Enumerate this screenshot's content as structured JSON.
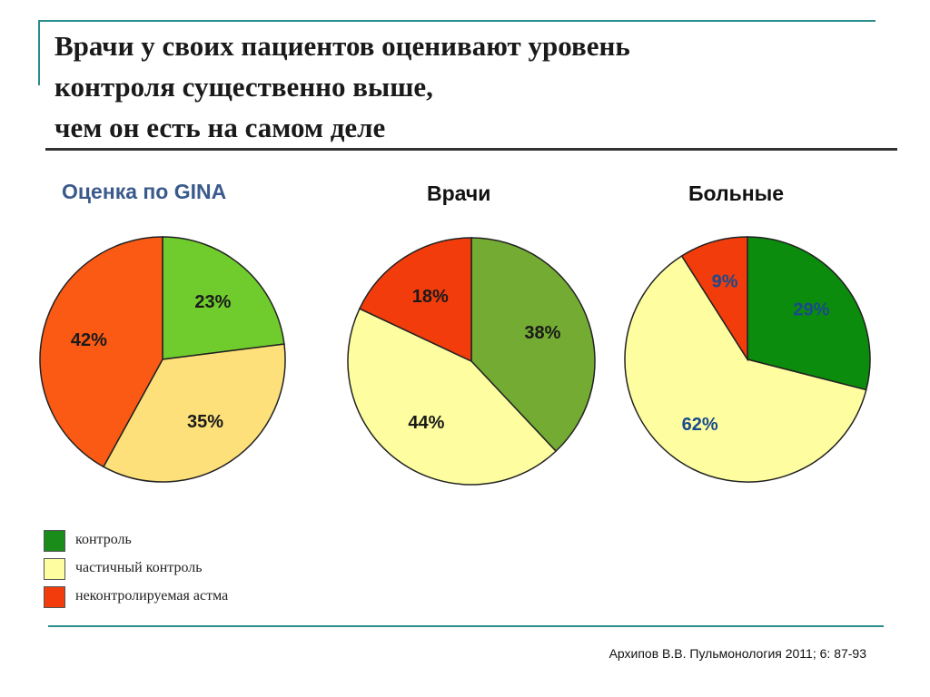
{
  "slide": {
    "title_lines": [
      "Врачи у своих пациентов оценивают уровень",
      "контроля существенно выше,",
      "чем он есть на самом деле"
    ],
    "citation": "Архипов В.В. Пульмонология 2011; 6: 87-93"
  },
  "legend": [
    {
      "label": "контроль",
      "color": "#1a8c1a"
    },
    {
      "label": "частичный контроль",
      "color": "#fefea0"
    },
    {
      "label": "неконтролируемая астма",
      "color": "#f23c0c"
    }
  ],
  "chart_data": [
    {
      "type": "pie",
      "title": "Оценка по GINA",
      "title_color": "#3b5a8c",
      "slices": [
        {
          "label": "23%",
          "value": 23,
          "category": "контроль",
          "color": "#6fcc2c"
        },
        {
          "label": "35%",
          "value": 35,
          "category": "частичный контроль",
          "color": "#fde07a"
        },
        {
          "label": "42%",
          "value": 42,
          "category": "неконтролируемая астма",
          "color": "#fa5a14"
        }
      ]
    },
    {
      "type": "pie",
      "title": "Врачи",
      "title_color": "#111111",
      "slices": [
        {
          "label": "38%",
          "value": 38,
          "category": "контроль",
          "color": "#73ab33"
        },
        {
          "label": "44%",
          "value": 44,
          "category": "частичный контроль",
          "color": "#fefea0"
        },
        {
          "label": "18%",
          "value": 18,
          "category": "неконтролируемая астма",
          "color": "#f23c0c"
        }
      ]
    },
    {
      "type": "pie",
      "title": "Больные",
      "title_color": "#111111",
      "slices": [
        {
          "label": "29%",
          "value": 29,
          "category": "контроль",
          "color": "#0c8c0c",
          "label_color": "#1a4a8c"
        },
        {
          "label": "62%",
          "value": 62,
          "category": "частичный контроль",
          "color": "#fefea0",
          "label_color": "#1a4a8c"
        },
        {
          "label": "9%",
          "value": 9,
          "category": "неконтролируемая астма",
          "color": "#f23c0c",
          "label_color": "#1a4a8c"
        }
      ]
    }
  ]
}
